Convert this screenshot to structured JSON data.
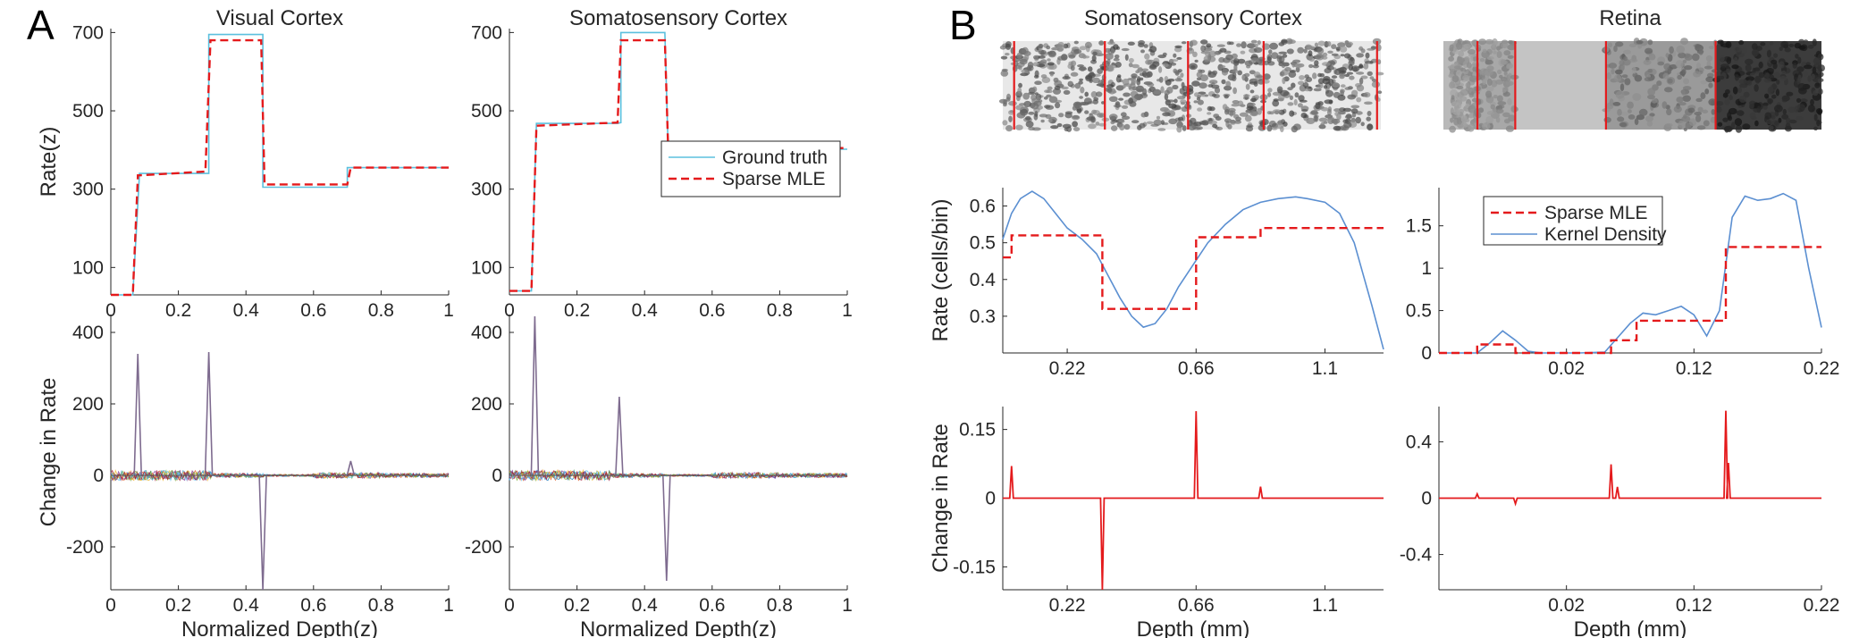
{
  "figure": {
    "panel_labels": [
      "A",
      "B"
    ]
  },
  "chart_data": [
    {
      "id": "a-vc-rate",
      "type": "line",
      "title": "Visual Cortex",
      "ylabel": "Rate(z)",
      "xlim": [
        0,
        1
      ],
      "ylim": [
        30,
        710
      ],
      "xticks": [
        0,
        0.2,
        0.4,
        0.6,
        0.8,
        1
      ],
      "xtick_labels": [
        "0",
        "0.2",
        "0.4",
        "0.6",
        "0.8",
        "1"
      ],
      "yticks": [
        100,
        300,
        500,
        700
      ],
      "ytick_labels": [
        "100",
        "300",
        "500",
        "700"
      ],
      "series": [
        {
          "name": "Ground truth",
          "color": "#5bc0de",
          "style": "solid",
          "x": [
            0,
            0.065,
            0.085,
            0.29,
            0.29,
            0.45,
            0.45,
            0.7,
            0.7,
            1
          ],
          "y": [
            30,
            30,
            340,
            340,
            695,
            695,
            305,
            305,
            355,
            355
          ]
        },
        {
          "name": "Sparse MLE",
          "color": "#e41a1c",
          "style": "dashed",
          "x": [
            0,
            0.065,
            0.08,
            0.08,
            0.28,
            0.295,
            0.295,
            0.445,
            0.455,
            0.455,
            0.7,
            0.71,
            1
          ],
          "y": [
            30,
            30,
            330,
            335,
            345,
            680,
            680,
            680,
            312,
            312,
            312,
            355,
            355
          ]
        }
      ]
    },
    {
      "id": "a-ss-rate",
      "type": "line",
      "title": "Somatosensory Cortex",
      "ylabel": "",
      "xlim": [
        0,
        1
      ],
      "ylim": [
        30,
        710
      ],
      "xticks": [
        0,
        0.2,
        0.4,
        0.6,
        0.8,
        1
      ],
      "xtick_labels": [
        "0",
        "0.2",
        "0.4",
        "0.6",
        "0.8",
        "1"
      ],
      "yticks": [
        100,
        300,
        500,
        700
      ],
      "ytick_labels": [
        "100",
        "300",
        "500",
        "700"
      ],
      "legend": {
        "position": "lower-right",
        "entries": [
          "Ground truth",
          "Sparse MLE"
        ]
      },
      "series": [
        {
          "name": "Ground truth",
          "color": "#5bc0de",
          "style": "solid",
          "x": [
            0,
            0.065,
            0.08,
            0.32,
            0.33,
            0.33,
            0.46,
            0.47,
            0.73,
            0.73,
            1
          ],
          "y": [
            40,
            40,
            468,
            468,
            470,
            700,
            700,
            392,
            392,
            402,
            402
          ]
        },
        {
          "name": "Sparse MLE",
          "color": "#e41a1c",
          "style": "dashed",
          "x": [
            0,
            0.065,
            0.08,
            0.08,
            0.32,
            0.33,
            0.33,
            0.46,
            0.47,
            0.47,
            0.73,
            0.73,
            1
          ],
          "y": [
            40,
            40,
            460,
            462,
            470,
            680,
            680,
            680,
            395,
            395,
            400,
            405,
            405
          ]
        }
      ]
    },
    {
      "id": "a-vc-change",
      "type": "line",
      "title": "",
      "ylabel": "Change in Rate",
      "xlabel": "Normalized Depth(z)",
      "xlim": [
        0,
        1
      ],
      "ylim": [
        -320,
        450
      ],
      "xticks": [
        0,
        0.2,
        0.4,
        0.6,
        0.8,
        1
      ],
      "xtick_labels": [
        "0",
        "0.2",
        "0.4",
        "0.6",
        "0.8",
        "1"
      ],
      "yticks": [
        -200,
        0,
        200,
        400
      ],
      "ytick_labels": [
        "-200",
        "0",
        "200",
        "400"
      ],
      "spikes": [
        {
          "x": 0.08,
          "y": 340
        },
        {
          "x": 0.29,
          "y": 345
        },
        {
          "x": 0.45,
          "y": -320
        },
        {
          "x": 0.71,
          "y": 40
        }
      ]
    },
    {
      "id": "a-ss-change",
      "type": "line",
      "title": "",
      "ylabel": "",
      "xlabel": "Normalized Depth(z)",
      "xlim": [
        0,
        1
      ],
      "ylim": [
        -320,
        450
      ],
      "xticks": [
        0,
        0.2,
        0.4,
        0.6,
        0.8,
        1
      ],
      "xtick_labels": [
        "0",
        "0.2",
        "0.4",
        "0.6",
        "0.8",
        "1"
      ],
      "yticks": [
        -200,
        0,
        200,
        400
      ],
      "ytick_labels": [
        "-200",
        "0",
        "200",
        "400"
      ],
      "spikes": [
        {
          "x": 0.075,
          "y": 445
        },
        {
          "x": 0.325,
          "y": 220
        },
        {
          "x": 0.465,
          "y": -295
        }
      ]
    },
    {
      "id": "b-ss-rate",
      "type": "line",
      "title": "Somatosensory Cortex",
      "ylabel": "Rate (cells/bin)",
      "xlim": [
        0,
        1.3
      ],
      "ylim": [
        0.2,
        0.65
      ],
      "xticks": [
        0.22,
        0.66,
        1.1
      ],
      "xtick_labels": [
        "0.22",
        "0.66",
        "1.1"
      ],
      "yticks": [
        0.3,
        0.4,
        0.5,
        0.6
      ],
      "ytick_labels": [
        "0.3",
        "0.4",
        "0.5",
        "0.6"
      ],
      "legend": {
        "position": "none",
        "entries": []
      },
      "series": [
        {
          "name": "Kernel Density",
          "color": "#5b8fd1",
          "style": "solid",
          "x": [
            0,
            0.03,
            0.06,
            0.1,
            0.14,
            0.18,
            0.22,
            0.27,
            0.32,
            0.36,
            0.4,
            0.44,
            0.48,
            0.52,
            0.56,
            0.6,
            0.65,
            0.7,
            0.76,
            0.82,
            0.88,
            0.94,
            1.0,
            1.04,
            1.1,
            1.15,
            1.2,
            1.26,
            1.3
          ],
          "y": [
            0.51,
            0.58,
            0.62,
            0.64,
            0.62,
            0.58,
            0.54,
            0.51,
            0.47,
            0.41,
            0.35,
            0.3,
            0.27,
            0.28,
            0.32,
            0.38,
            0.44,
            0.5,
            0.55,
            0.59,
            0.61,
            0.62,
            0.625,
            0.62,
            0.61,
            0.58,
            0.5,
            0.33,
            0.21
          ]
        },
        {
          "name": "Sparse MLE",
          "color": "#e41a1c",
          "style": "dashed",
          "x": [
            0,
            0.03,
            0.03,
            0.34,
            0.34,
            0.66,
            0.66,
            0.88,
            0.88,
            1.3
          ],
          "y": [
            0.46,
            0.46,
            0.52,
            0.52,
            0.32,
            0.32,
            0.515,
            0.515,
            0.54,
            0.54
          ]
        }
      ]
    },
    {
      "id": "b-ret-rate",
      "type": "line",
      "title": "Retina",
      "ylabel": "",
      "xlim": [
        -0.08,
        0.22
      ],
      "ylim": [
        0,
        1.95
      ],
      "xticks": [
        0.02,
        0.12,
        0.22
      ],
      "xtick_labels": [
        "0.02",
        "0.12",
        "0.22"
      ],
      "yticks": [
        0,
        0.5,
        1,
        1.5
      ],
      "ytick_labels": [
        "0",
        "0.5",
        "1",
        "1.5"
      ],
      "legend": {
        "position": "top-left",
        "entries": [
          "Sparse MLE",
          "Kernel Density"
        ]
      },
      "series": [
        {
          "name": "Kernel Density",
          "color": "#5b8fd1",
          "style": "solid",
          "x": [
            -0.08,
            -0.05,
            -0.04,
            -0.03,
            -0.02,
            -0.01,
            0.0,
            0.03,
            0.05,
            0.07,
            0.08,
            0.09,
            0.1,
            0.11,
            0.12,
            0.13,
            0.14,
            0.15,
            0.16,
            0.17,
            0.18,
            0.19,
            0.2,
            0.21,
            0.22
          ],
          "y": [
            0,
            0,
            0.12,
            0.26,
            0.15,
            0.02,
            0,
            0,
            0.01,
            0.35,
            0.47,
            0.45,
            0.5,
            0.55,
            0.45,
            0.2,
            0.5,
            1.6,
            1.85,
            1.8,
            1.82,
            1.88,
            1.8,
            1.0,
            0.3
          ]
        },
        {
          "name": "Sparse MLE",
          "color": "#e41a1c",
          "style": "dashed",
          "x": [
            -0.08,
            -0.05,
            -0.05,
            -0.02,
            -0.02,
            0.055,
            0.055,
            0.075,
            0.075,
            0.145,
            0.145,
            0.22
          ],
          "y": [
            0,
            0,
            0.1,
            0.1,
            0,
            0,
            0.15,
            0.15,
            0.38,
            0.38,
            1.25,
            1.25
          ]
        }
      ]
    },
    {
      "id": "b-ss-change",
      "type": "line",
      "title": "",
      "ylabel": "Change in Rate",
      "xlabel": "Depth (mm)",
      "xlim": [
        0,
        1.3
      ],
      "ylim": [
        -0.2,
        0.2
      ],
      "xticks": [
        0.22,
        0.66,
        1.1
      ],
      "xtick_labels": [
        "0.22",
        "0.66",
        "1.1"
      ],
      "yticks": [
        -0.15,
        0,
        0.15
      ],
      "ytick_labels": [
        "-0.15",
        "0",
        "0.15"
      ],
      "spikes": [
        {
          "x": 0.03,
          "y": 0.07
        },
        {
          "x": 0.34,
          "y": -0.2
        },
        {
          "x": 0.66,
          "y": 0.19
        },
        {
          "x": 0.88,
          "y": 0.025
        }
      ]
    },
    {
      "id": "b-ret-change",
      "type": "line",
      "title": "",
      "ylabel": "",
      "xlabel": "Depth (mm)",
      "xlim": [
        -0.08,
        0.22
      ],
      "ylim": [
        -0.65,
        0.65
      ],
      "xticks": [
        0.02,
        0.12,
        0.22
      ],
      "xtick_labels": [
        "0.02",
        "0.12",
        "0.22"
      ],
      "yticks": [
        -0.4,
        0,
        0.4
      ],
      "ytick_labels": [
        "-0.4",
        "0",
        "0.4"
      ],
      "spikes": [
        {
          "x": -0.05,
          "y": 0.03
        },
        {
          "x": -0.02,
          "y": -0.04
        },
        {
          "x": 0.055,
          "y": 0.24
        },
        {
          "x": 0.06,
          "y": 0.08
        },
        {
          "x": 0.145,
          "y": 0.62
        },
        {
          "x": 0.147,
          "y": 0.25
        }
      ]
    }
  ],
  "micrographs": [
    {
      "id": "somatosensory-micrograph",
      "boundaries": [
        0.03,
        0.27,
        0.49,
        0.69,
        0.99
      ],
      "tone": "light"
    },
    {
      "id": "retina-micrograph",
      "boundaries": [
        0.09,
        0.19,
        0.43,
        0.72
      ],
      "tone": "layered"
    }
  ]
}
